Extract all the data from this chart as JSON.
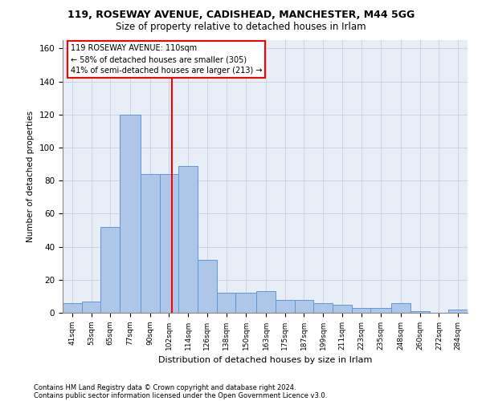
{
  "title_line1": "119, ROSEWAY AVENUE, CADISHEAD, MANCHESTER, M44 5GG",
  "title_line2": "Size of property relative to detached houses in Irlam",
  "xlabel": "Distribution of detached houses by size in Irlam",
  "ylabel": "Number of detached properties",
  "property_size": 110,
  "property_label": "119 ROSEWAY AVENUE: 110sqm",
  "annotation_line1": "← 58% of detached houses are smaller (305)",
  "annotation_line2": "41% of semi-detached houses are larger (213) →",
  "footer_line1": "Contains HM Land Registry data © Crown copyright and database right 2024.",
  "footer_line2": "Contains public sector information licensed under the Open Government Licence v3.0.",
  "bar_color": "#aec6e8",
  "bar_edge_color": "#5b9bd5",
  "vline_color": "red",
  "annotation_box_color": "red",
  "background_color": "#e8eef8",
  "categories": [
    "41sqm",
    "53sqm",
    "65sqm",
    "77sqm",
    "90sqm",
    "102sqm",
    "114sqm",
    "126sqm",
    "138sqm",
    "150sqm",
    "163sqm",
    "175sqm",
    "187sqm",
    "199sqm",
    "211sqm",
    "223sqm",
    "235sqm",
    "248sqm",
    "260sqm",
    "272sqm",
    "284sqm"
  ],
  "bin_edges": [
    41,
    53,
    65,
    77,
    90,
    102,
    114,
    126,
    138,
    150,
    163,
    175,
    187,
    199,
    211,
    223,
    235,
    248,
    260,
    272,
    284,
    296
  ],
  "values": [
    6,
    7,
    52,
    120,
    84,
    84,
    89,
    32,
    12,
    12,
    13,
    8,
    8,
    6,
    5,
    3,
    3,
    6,
    1,
    0,
    2
  ],
  "ylim": [
    0,
    165
  ],
  "yticks": [
    0,
    20,
    40,
    60,
    80,
    100,
    120,
    140,
    160
  ],
  "grid_color": "#c8d0e0"
}
